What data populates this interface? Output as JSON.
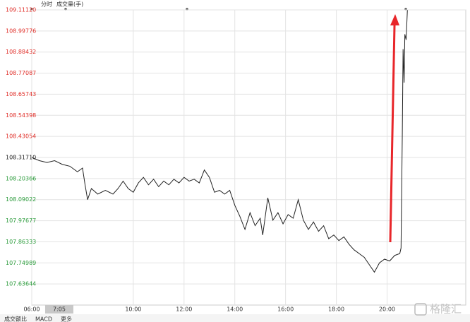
{
  "header": {
    "tabs": [
      "分时",
      "成交量(手)"
    ]
  },
  "chart_data": {
    "type": "line",
    "series": [
      {
        "name": "price",
        "color": "#222222",
        "x": [
          6.0,
          6.3,
          6.6,
          6.9,
          7.2,
          7.5,
          7.8,
          8.0,
          8.1,
          8.2,
          8.35,
          8.6,
          8.9,
          9.2,
          9.4,
          9.6,
          9.8,
          10.0,
          10.2,
          10.4,
          10.6,
          10.8,
          11.0,
          11.2,
          11.4,
          11.6,
          11.8,
          12.0,
          12.2,
          12.4,
          12.6,
          12.8,
          13.0,
          13.2,
          13.4,
          13.6,
          13.8,
          14.0,
          14.2,
          14.4,
          14.6,
          14.8,
          15.0,
          15.1,
          15.3,
          15.5,
          15.7,
          15.9,
          16.1,
          16.3,
          16.5,
          16.7,
          16.9,
          17.1,
          17.3,
          17.5,
          17.7,
          17.9,
          18.1,
          18.3,
          18.5,
          18.7,
          18.9,
          19.1,
          19.3,
          19.5,
          19.7,
          19.9,
          20.1,
          20.3,
          20.5,
          20.55,
          20.6,
          20.63,
          20.67,
          20.7,
          20.75,
          20.8
        ],
        "values": [
          108.317,
          108.3,
          108.29,
          108.3,
          108.28,
          108.27,
          108.24,
          108.26,
          108.17,
          108.09,
          108.15,
          108.12,
          108.14,
          108.12,
          108.15,
          108.19,
          108.15,
          108.13,
          108.18,
          108.21,
          108.17,
          108.2,
          108.16,
          108.19,
          108.17,
          108.2,
          108.18,
          108.21,
          108.19,
          108.2,
          108.18,
          108.25,
          108.21,
          108.13,
          108.14,
          108.12,
          108.14,
          108.06,
          108.0,
          107.93,
          108.02,
          107.95,
          107.99,
          107.9,
          108.1,
          107.98,
          108.02,
          107.96,
          108.01,
          107.99,
          108.09,
          107.98,
          107.93,
          107.97,
          107.92,
          107.95,
          107.88,
          107.9,
          107.87,
          107.89,
          107.85,
          107.82,
          107.8,
          107.78,
          107.74,
          107.7,
          107.75,
          107.77,
          107.76,
          107.79,
          107.8,
          107.83,
          108.45,
          108.9,
          108.72,
          108.98,
          108.95,
          109.11
        ]
      }
    ],
    "xlim": [
      6,
      23.1
    ],
    "xticks": [
      {
        "value": 6,
        "label": "06:00"
      },
      {
        "value": 10,
        "label": "10:00"
      },
      {
        "value": 12,
        "label": "12:00"
      },
      {
        "value": 14,
        "label": "14:00"
      },
      {
        "value": 16,
        "label": "16:00"
      },
      {
        "value": 18,
        "label": "18:00"
      },
      {
        "value": 20,
        "label": "20:00"
      }
    ],
    "cursor": {
      "value": 7.0833,
      "label": "7:05"
    },
    "ylim": [
      107.523,
      109.1112
    ],
    "yticks": [
      {
        "value": 109.1112,
        "label": "109.11120"
      },
      108.99776,
      108.88432,
      108.77087,
      108.65743,
      108.54398,
      108.43054,
      {
        "value": 108.3171,
        "label": "108.31710"
      },
      108.20366,
      108.09022,
      107.97677,
      107.86333,
      107.74989,
      107.63644
    ],
    "up_color": "#e0302a",
    "down_color": "#2a9a3a",
    "grid": true
  },
  "footer": {
    "tabs": [
      "成交额比",
      "MACD",
      "更多"
    ],
    "watermark": "格隆汇"
  }
}
